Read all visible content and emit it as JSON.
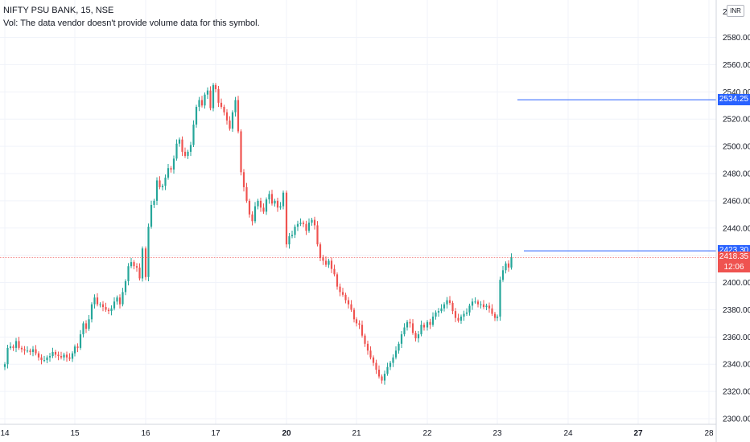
{
  "header": {
    "title": "NIFTY PSU BANK, 15, NSE",
    "volume_note": "Vol: The data vendor doesn't provide volume data for this symbol."
  },
  "currency_badge": "INR",
  "colors": {
    "up": "#26a69a",
    "down": "#ef5350",
    "level_line": "#2962ff",
    "last_price_line": "#ef5350",
    "grid": "#f0f3fa",
    "axis_text": "#131722"
  },
  "price_tags": [
    {
      "id": "level-high",
      "label": "2534.25",
      "value": 2534.25,
      "color": "#2962ff"
    },
    {
      "id": "level-mid",
      "label": "2423.30",
      "value": 2423.3,
      "color": "#2962ff"
    },
    {
      "id": "last-price",
      "label": "2418.35",
      "sub": "12:06",
      "value": 2418.35,
      "color": "#ef5350"
    }
  ],
  "chart_data": {
    "type": "candlestick",
    "symbol": "NIFTY PSU BANK",
    "interval": "15",
    "exchange": "NSE",
    "y_axis": {
      "range": [
        2300,
        2610
      ],
      "ticks": [
        2300,
        2320,
        2340,
        2360,
        2380,
        2400,
        2420,
        2440,
        2460,
        2480,
        2500,
        2520,
        2540,
        2560,
        2580
      ],
      "tick_labels": [
        "2300.00",
        "2320.00",
        "2340.00",
        "2360.00",
        "2380.00",
        "2400.00",
        "2420.00",
        "2440.00",
        "2460.00",
        "2480.00",
        "2500.00",
        "2520.00",
        "2540.00",
        "2560.00",
        "2580.00"
      ],
      "top_partial_label": "2..."
    },
    "x_axis": {
      "labels": [
        {
          "label": "14",
          "bold": false
        },
        {
          "label": "15",
          "bold": false
        },
        {
          "label": "16",
          "bold": false
        },
        {
          "label": "17",
          "bold": false
        },
        {
          "label": "20",
          "bold": true
        },
        {
          "label": "21",
          "bold": false
        },
        {
          "label": "22",
          "bold": false
        },
        {
          "label": "23",
          "bold": false
        },
        {
          "label": "24",
          "bold": false
        },
        {
          "label": "27",
          "bold": true
        },
        {
          "label": "28",
          "bold": false
        }
      ]
    },
    "horizontal_levels": [
      {
        "value": 2534.25,
        "start_session": "23"
      },
      {
        "value": 2423.3,
        "start_session": "23"
      }
    ],
    "last_price": 2418.35,
    "grid": true,
    "sessions": [
      {
        "label": "14",
        "closes": [
          2340,
          2352,
          2353,
          2352,
          2357,
          2352,
          2351,
          2350,
          2350,
          2349,
          2351,
          2348,
          2345,
          2343,
          2343,
          2345,
          2346,
          2349,
          2347,
          2346,
          2345,
          2347,
          2345,
          2344,
          2348
        ]
      },
      {
        "label": "15",
        "closes": [
          2353,
          2352,
          2362,
          2370,
          2366,
          2373,
          2384,
          2389,
          2384,
          2384,
          2382,
          2380,
          2379,
          2381,
          2386,
          2389,
          2384,
          2393,
          2401,
          2412,
          2415,
          2412,
          2411,
          2403,
          2425
        ]
      },
      {
        "label": "16",
        "closes": [
          2404,
          2441,
          2457,
          2460,
          2475,
          2470,
          2471,
          2477,
          2484,
          2483,
          2491,
          2502,
          2505,
          2496,
          2493,
          2496,
          2501,
          2516,
          2529,
          2534,
          2530,
          2538,
          2541,
          2528,
          2545
        ]
      },
      {
        "label": "17",
        "closes": [
          2542,
          2532,
          2529,
          2525,
          2519,
          2513,
          2525,
          2534,
          2511,
          2481,
          2470,
          2460,
          2450,
          2445,
          2456,
          2460,
          2455,
          2452,
          2461,
          2465,
          2458,
          2460,
          2455,
          2456,
          2466
        ]
      },
      {
        "label": "20",
        "closes": [
          2428,
          2434,
          2435,
          2441,
          2443,
          2444,
          2443,
          2438,
          2444,
          2446,
          2442,
          2428,
          2418,
          2416,
          2413,
          2416,
          2410,
          2406,
          2397,
          2393,
          2391,
          2387,
          2384,
          2380,
          2373
        ]
      },
      {
        "label": "21",
        "closes": [
          2370,
          2369,
          2361,
          2355,
          2350,
          2345,
          2341,
          2336,
          2331,
          2328,
          2333,
          2338,
          2341,
          2345,
          2350,
          2355,
          2362,
          2367,
          2371,
          2370,
          2363,
          2359,
          2362,
          2369,
          2367
        ]
      },
      {
        "label": "22",
        "closes": [
          2371,
          2369,
          2375,
          2378,
          2379,
          2381,
          2384,
          2387,
          2385,
          2379,
          2374,
          2372,
          2375,
          2377,
          2378,
          2383,
          2386,
          2386,
          2384,
          2384,
          2382,
          2383,
          2381,
          2377,
          2374
        ]
      },
      {
        "label": "23",
        "closes": [
          2375,
          2402,
          2409,
          2414,
          2411,
          2418.35
        ]
      }
    ]
  }
}
